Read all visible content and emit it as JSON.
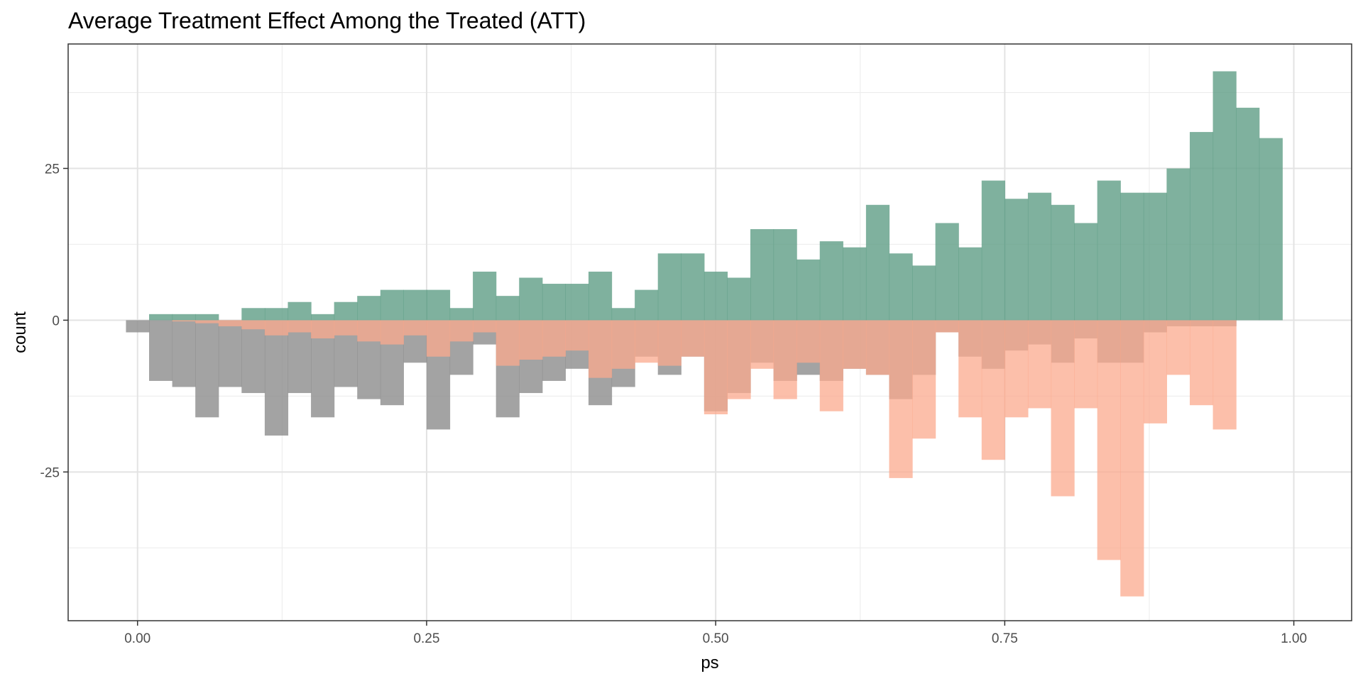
{
  "chart_data": {
    "type": "bar",
    "title": "Average Treatment Effect Among the Treated (ATT)",
    "xlabel": "ps",
    "ylabel": "count",
    "xlim": [
      -0.06,
      1.05
    ],
    "ylim": [
      -49.5,
      45.5
    ],
    "x_ticks": [
      0.0,
      0.25,
      0.5,
      0.75,
      1.0
    ],
    "x_tick_labels": [
      "0.00",
      "0.25",
      "0.50",
      "0.75",
      "1.00"
    ],
    "y_ticks": [
      -25,
      0,
      25
    ],
    "y_tick_labels": [
      "-25",
      "0",
      "25"
    ],
    "grid": true,
    "bin_width": 0.02,
    "bin_start": -0.01,
    "colors": {
      "treated": "#5f9e86",
      "control_weighted": "#fba98e",
      "control_unweighted": "#8c8c8c"
    },
    "series": [
      {
        "key": "control_unweighted",
        "values": [
          -2,
          -10,
          -11,
          -16,
          -11,
          -12,
          -19,
          -12,
          -16,
          -11,
          -13,
          -14,
          -7,
          -18,
          -9,
          -4,
          -16,
          -12,
          -10,
          -8,
          -14,
          -11,
          -6,
          -9,
          -6,
          -15,
          -12,
          -7,
          -10,
          -9,
          -10,
          -8,
          -9,
          -13,
          -9,
          -2,
          -6,
          -8,
          -5,
          -4,
          -7,
          -3,
          -7,
          -7,
          -2,
          -1,
          -1,
          -1,
          0,
          0
        ]
      },
      {
        "key": "control_weighted",
        "values": [
          0,
          0,
          -0.2,
          -0.5,
          -1,
          -1.5,
          -2.5,
          -2,
          -3,
          -2.5,
          -3.5,
          -4,
          -2.5,
          -6,
          -3.5,
          -2,
          -7.5,
          -6.5,
          -6,
          -5,
          -9.5,
          -8,
          -7,
          -7.5,
          -6,
          -15.5,
          -13,
          -8,
          -13,
          -7,
          -15,
          -8,
          -9,
          -26,
          -19.5,
          -2,
          -16,
          -23,
          -16,
          -14.5,
          -29,
          -14.5,
          -39.5,
          -45.5,
          -17,
          -9,
          -14,
          -18,
          0,
          0
        ]
      },
      {
        "key": "treated",
        "values": [
          0,
          1,
          1,
          1,
          0,
          2,
          2,
          3,
          1,
          3,
          4,
          5,
          5,
          5,
          2,
          8,
          4,
          7,
          6,
          6,
          8,
          2,
          5,
          11,
          11,
          8,
          7,
          15,
          15,
          10,
          13,
          12,
          19,
          11,
          9,
          16,
          12,
          23,
          20,
          21,
          19,
          16,
          23,
          21,
          21,
          25,
          31,
          41,
          35,
          30
        ]
      }
    ]
  }
}
